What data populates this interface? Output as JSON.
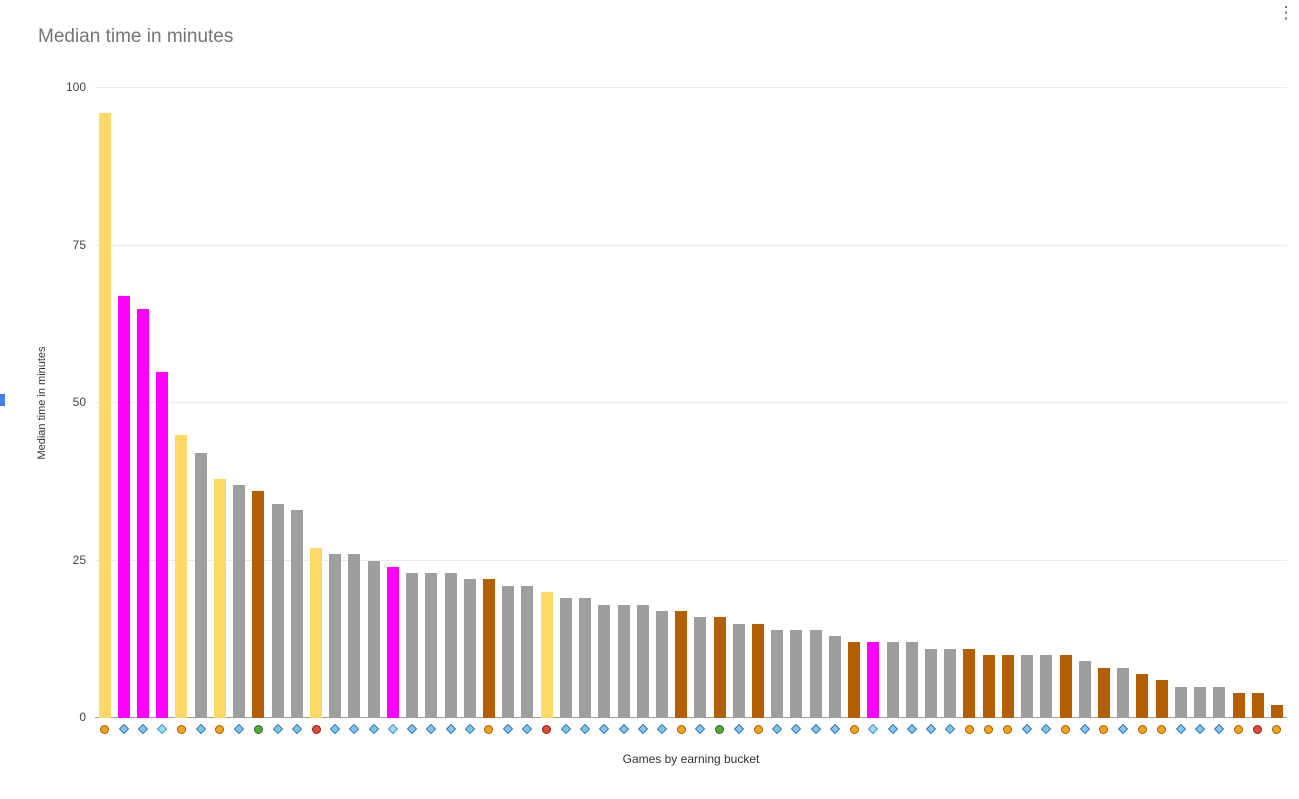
{
  "menu": {
    "more_options_icon": "⋮"
  },
  "misc": {
    "left_edge_artifact_color": "#4a7fe8"
  },
  "chart_data": {
    "type": "bar",
    "title": "Median time in minutes",
    "xlabel": "Games by earning bucket",
    "ylabel": "Median time in minutes",
    "ylim": [
      0,
      100
    ],
    "yticks": [
      0,
      25,
      50,
      75,
      100
    ],
    "grid": true,
    "legend_position": "none",
    "categories_note": "each bar labeled by a small game icon instead of text",
    "bar_colors": {
      "yellow": "#ffd966",
      "magenta": "#ff00ff",
      "gray": "#9e9e9e",
      "brown": "#b45f06"
    },
    "icon_colors": {
      "gem-blue": "#7cc7f0",
      "gem-cyan": "#9adcf5",
      "medal-orange": "#f6a21d",
      "medal-green": "#57a639",
      "medal-red": "#e04a3a"
    },
    "bars": [
      {
        "value": 96,
        "color": "yellow",
        "icon": "medal-orange"
      },
      {
        "value": 67,
        "color": "magenta",
        "icon": "gem-blue"
      },
      {
        "value": 65,
        "color": "magenta",
        "icon": "gem-blue"
      },
      {
        "value": 55,
        "color": "magenta",
        "icon": "gem-cyan"
      },
      {
        "value": 45,
        "color": "yellow",
        "icon": "medal-orange"
      },
      {
        "value": 42,
        "color": "gray",
        "icon": "gem-blue"
      },
      {
        "value": 38,
        "color": "yellow",
        "icon": "medal-orange"
      },
      {
        "value": 37,
        "color": "gray",
        "icon": "gem-blue"
      },
      {
        "value": 36,
        "color": "brown",
        "icon": "medal-green"
      },
      {
        "value": 34,
        "color": "gray",
        "icon": "gem-blue"
      },
      {
        "value": 33,
        "color": "gray",
        "icon": "gem-blue"
      },
      {
        "value": 27,
        "color": "yellow",
        "icon": "medal-red"
      },
      {
        "value": 26,
        "color": "gray",
        "icon": "gem-blue"
      },
      {
        "value": 26,
        "color": "gray",
        "icon": "gem-blue"
      },
      {
        "value": 25,
        "color": "gray",
        "icon": "gem-blue"
      },
      {
        "value": 24,
        "color": "magenta",
        "icon": "gem-cyan"
      },
      {
        "value": 23,
        "color": "gray",
        "icon": "gem-blue"
      },
      {
        "value": 23,
        "color": "gray",
        "icon": "gem-blue"
      },
      {
        "value": 23,
        "color": "gray",
        "icon": "gem-blue"
      },
      {
        "value": 22,
        "color": "gray",
        "icon": "gem-blue"
      },
      {
        "value": 22,
        "color": "brown",
        "icon": "medal-orange"
      },
      {
        "value": 21,
        "color": "gray",
        "icon": "gem-blue"
      },
      {
        "value": 21,
        "color": "gray",
        "icon": "gem-blue"
      },
      {
        "value": 20,
        "color": "yellow",
        "icon": "medal-red"
      },
      {
        "value": 19,
        "color": "gray",
        "icon": "gem-blue"
      },
      {
        "value": 19,
        "color": "gray",
        "icon": "gem-blue"
      },
      {
        "value": 18,
        "color": "gray",
        "icon": "gem-blue"
      },
      {
        "value": 18,
        "color": "gray",
        "icon": "gem-blue"
      },
      {
        "value": 18,
        "color": "gray",
        "icon": "gem-blue"
      },
      {
        "value": 17,
        "color": "gray",
        "icon": "gem-blue"
      },
      {
        "value": 17,
        "color": "brown",
        "icon": "medal-orange"
      },
      {
        "value": 16,
        "color": "gray",
        "icon": "gem-blue"
      },
      {
        "value": 16,
        "color": "brown",
        "icon": "medal-green"
      },
      {
        "value": 15,
        "color": "gray",
        "icon": "gem-blue"
      },
      {
        "value": 15,
        "color": "brown",
        "icon": "medal-orange"
      },
      {
        "value": 14,
        "color": "gray",
        "icon": "gem-blue"
      },
      {
        "value": 14,
        "color": "gray",
        "icon": "gem-blue"
      },
      {
        "value": 14,
        "color": "gray",
        "icon": "gem-blue"
      },
      {
        "value": 13,
        "color": "gray",
        "icon": "gem-blue"
      },
      {
        "value": 12,
        "color": "brown",
        "icon": "medal-orange"
      },
      {
        "value": 12,
        "color": "magenta",
        "icon": "gem-cyan"
      },
      {
        "value": 12,
        "color": "gray",
        "icon": "gem-blue"
      },
      {
        "value": 12,
        "color": "gray",
        "icon": "gem-blue"
      },
      {
        "value": 11,
        "color": "gray",
        "icon": "gem-blue"
      },
      {
        "value": 11,
        "color": "gray",
        "icon": "gem-blue"
      },
      {
        "value": 11,
        "color": "brown",
        "icon": "medal-orange"
      },
      {
        "value": 10,
        "color": "brown",
        "icon": "medal-orange"
      },
      {
        "value": 10,
        "color": "brown",
        "icon": "medal-orange"
      },
      {
        "value": 10,
        "color": "gray",
        "icon": "gem-blue"
      },
      {
        "value": 10,
        "color": "gray",
        "icon": "gem-blue"
      },
      {
        "value": 10,
        "color": "brown",
        "icon": "medal-orange"
      },
      {
        "value": 9,
        "color": "gray",
        "icon": "gem-blue"
      },
      {
        "value": 8,
        "color": "brown",
        "icon": "medal-orange"
      },
      {
        "value": 8,
        "color": "gray",
        "icon": "gem-blue"
      },
      {
        "value": 7,
        "color": "brown",
        "icon": "medal-orange"
      },
      {
        "value": 6,
        "color": "brown",
        "icon": "medal-orange"
      },
      {
        "value": 5,
        "color": "gray",
        "icon": "gem-blue"
      },
      {
        "value": 5,
        "color": "gray",
        "icon": "gem-blue"
      },
      {
        "value": 5,
        "color": "gray",
        "icon": "gem-blue"
      },
      {
        "value": 4,
        "color": "brown",
        "icon": "medal-orange"
      },
      {
        "value": 4,
        "color": "brown",
        "icon": "medal-red"
      },
      {
        "value": 2,
        "color": "brown",
        "icon": "medal-orange"
      }
    ]
  }
}
